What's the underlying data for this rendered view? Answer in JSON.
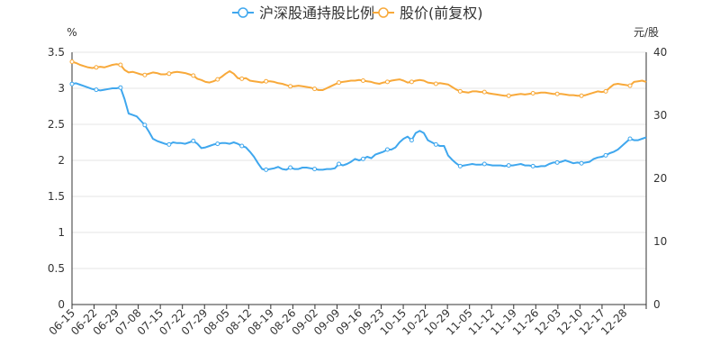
{
  "chart_data": {
    "type": "line",
    "legend": [
      {
        "label": "沪深股通持股比例",
        "color": "#3fa7ee"
      },
      {
        "label": "股价(前复权)",
        "color": "#f8a93a"
      }
    ],
    "legend_position": "top-center",
    "left_axis": {
      "unit": "%",
      "ylim": [
        0,
        3.5
      ],
      "ticks": [
        "0",
        "0.5",
        "1",
        "1.5",
        "2",
        "2.5",
        "3",
        "3.5"
      ]
    },
    "right_axis": {
      "unit": "元/股",
      "ylim": [
        0,
        40
      ],
      "ticks": [
        "0",
        "10",
        "20",
        "30",
        "40"
      ]
    },
    "x_ticks": [
      "06-15",
      "06-22",
      "06-29",
      "07-08",
      "07-15",
      "07-22",
      "07-29",
      "08-05",
      "08-12",
      "08-19",
      "08-26",
      "09-02",
      "09-09",
      "09-16",
      "09-23",
      "10-15",
      "10-22",
      "10-29",
      "11-05",
      "11-12",
      "11-19",
      "11-26",
      "12-03",
      "12-10",
      "12-17",
      "12-28"
    ],
    "grid": "horizontal",
    "series": [
      {
        "name": "沪深股通持股比例",
        "axis": "left",
        "color": "#3fa7ee",
        "values": [
          3.06,
          3.07,
          3.05,
          3.03,
          3.01,
          2.99,
          2.98,
          2.97,
          2.98,
          2.99,
          3.0,
          3.0,
          3.01,
          2.85,
          2.65,
          2.63,
          2.61,
          2.55,
          2.49,
          2.4,
          2.3,
          2.27,
          2.25,
          2.23,
          2.22,
          2.25,
          2.24,
          2.24,
          2.23,
          2.25,
          2.27,
          2.23,
          2.17,
          2.18,
          2.2,
          2.22,
          2.23,
          2.24,
          2.24,
          2.23,
          2.25,
          2.23,
          2.2,
          2.18,
          2.12,
          2.05,
          1.96,
          1.88,
          1.87,
          1.88,
          1.89,
          1.91,
          1.88,
          1.87,
          1.9,
          1.88,
          1.88,
          1.9,
          1.9,
          1.89,
          1.88,
          1.87,
          1.87,
          1.88,
          1.88,
          1.89,
          1.95,
          1.93,
          1.95,
          1.98,
          2.02,
          2.0,
          2.02,
          2.05,
          2.03,
          2.08,
          2.1,
          2.12,
          2.15,
          2.15,
          2.18,
          2.25,
          2.3,
          2.33,
          2.28,
          2.38,
          2.41,
          2.38,
          2.28,
          2.25,
          2.22,
          2.2,
          2.2,
          2.07,
          2.01,
          1.96,
          1.92,
          1.93,
          1.94,
          1.95,
          1.94,
          1.94,
          1.95,
          1.94,
          1.93,
          1.93,
          1.93,
          1.92,
          1.93,
          1.93,
          1.94,
          1.95,
          1.93,
          1.93,
          1.92,
          1.91,
          1.92,
          1.92,
          1.95,
          1.97,
          1.97,
          1.98,
          2.0,
          1.98,
          1.96,
          1.97,
          1.96,
          1.97,
          1.98,
          2.02,
          2.04,
          2.05,
          2.07,
          2.1,
          2.12,
          2.15,
          2.2,
          2.25,
          2.3,
          2.28,
          2.28,
          2.3,
          2.32
        ]
      },
      {
        "name": "股价(前复权)",
        "axis": "right",
        "color": "#f8a93a",
        "values": [
          38.5,
          38.3,
          38.0,
          37.8,
          37.6,
          37.5,
          37.6,
          37.7,
          37.6,
          37.8,
          38.0,
          38.1,
          38.0,
          37.2,
          36.8,
          36.9,
          36.7,
          36.5,
          36.4,
          36.6,
          36.8,
          36.7,
          36.5,
          36.5,
          36.6,
          36.8,
          36.9,
          36.8,
          36.7,
          36.5,
          36.3,
          35.8,
          35.6,
          35.3,
          35.2,
          35.4,
          35.7,
          36.1,
          36.6,
          37.0,
          36.6,
          35.9,
          35.8,
          35.9,
          35.5,
          35.4,
          35.3,
          35.2,
          35.4,
          35.4,
          35.3,
          35.1,
          35.0,
          34.8,
          34.6,
          34.6,
          34.7,
          34.6,
          34.5,
          34.4,
          34.2,
          34.0,
          34.0,
          34.3,
          34.6,
          34.9,
          35.2,
          35.3,
          35.4,
          35.5,
          35.5,
          35.6,
          35.5,
          35.4,
          35.3,
          35.1,
          35.0,
          35.2,
          35.3,
          35.5,
          35.6,
          35.7,
          35.5,
          35.2,
          35.3,
          35.5,
          35.6,
          35.5,
          35.2,
          35.1,
          35.0,
          35.1,
          35.0,
          34.9,
          34.5,
          34.1,
          33.8,
          33.7,
          33.6,
          33.8,
          33.8,
          33.7,
          33.7,
          33.5,
          33.4,
          33.3,
          33.2,
          33.1,
          33.1,
          33.2,
          33.3,
          33.4,
          33.3,
          33.4,
          33.5,
          33.5,
          33.6,
          33.6,
          33.5,
          33.4,
          33.4,
          33.4,
          33.3,
          33.2,
          33.2,
          33.1,
          33.1,
          33.2,
          33.4,
          33.6,
          33.8,
          33.7,
          33.8,
          34.4,
          34.9,
          35.0,
          34.9,
          34.8,
          34.7,
          35.3,
          35.4,
          35.5,
          35.3
        ]
      }
    ]
  }
}
